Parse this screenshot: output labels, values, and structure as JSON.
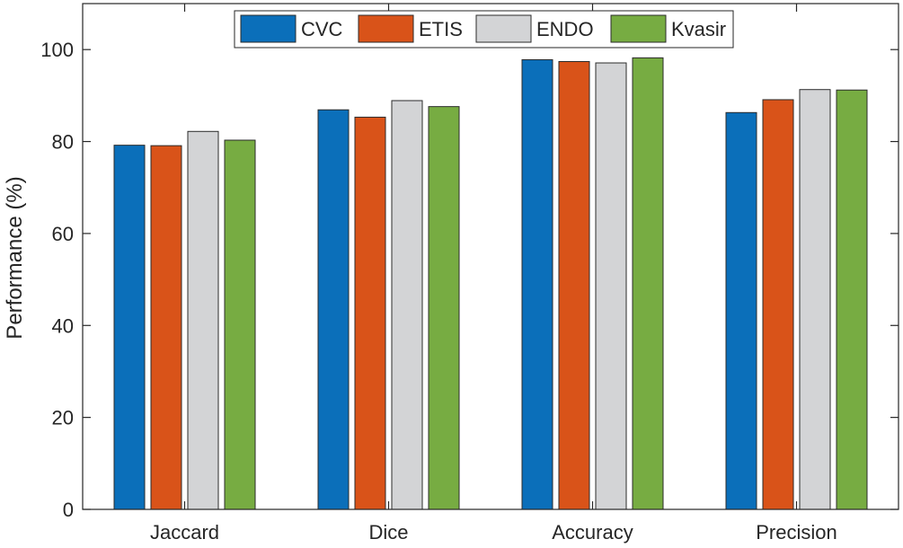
{
  "chart_data": {
    "type": "bar",
    "title": "",
    "xlabel": "",
    "ylabel": "Performance (%)",
    "categories": [
      "Jaccard",
      "Dice",
      "Accuracy",
      "Precision"
    ],
    "ylim": [
      0,
      110
    ],
    "yticks": [
      0,
      20,
      40,
      60,
      80,
      100
    ],
    "grid": false,
    "legend_position": "top",
    "series": [
      {
        "name": "CVC",
        "color": "#0b6fba",
        "values": [
          79.2,
          86.9,
          97.8,
          86.3
        ]
      },
      {
        "name": "ETIS",
        "color": "#d95319",
        "values": [
          79.1,
          85.3,
          97.4,
          89.1
        ]
      },
      {
        "name": "ENDO",
        "color": "#d3d4d6",
        "values": [
          82.2,
          88.9,
          97.1,
          91.3
        ]
      },
      {
        "name": "Kvasir",
        "color": "#77ac42",
        "values": [
          80.3,
          87.6,
          98.2,
          91.2
        ]
      }
    ]
  }
}
